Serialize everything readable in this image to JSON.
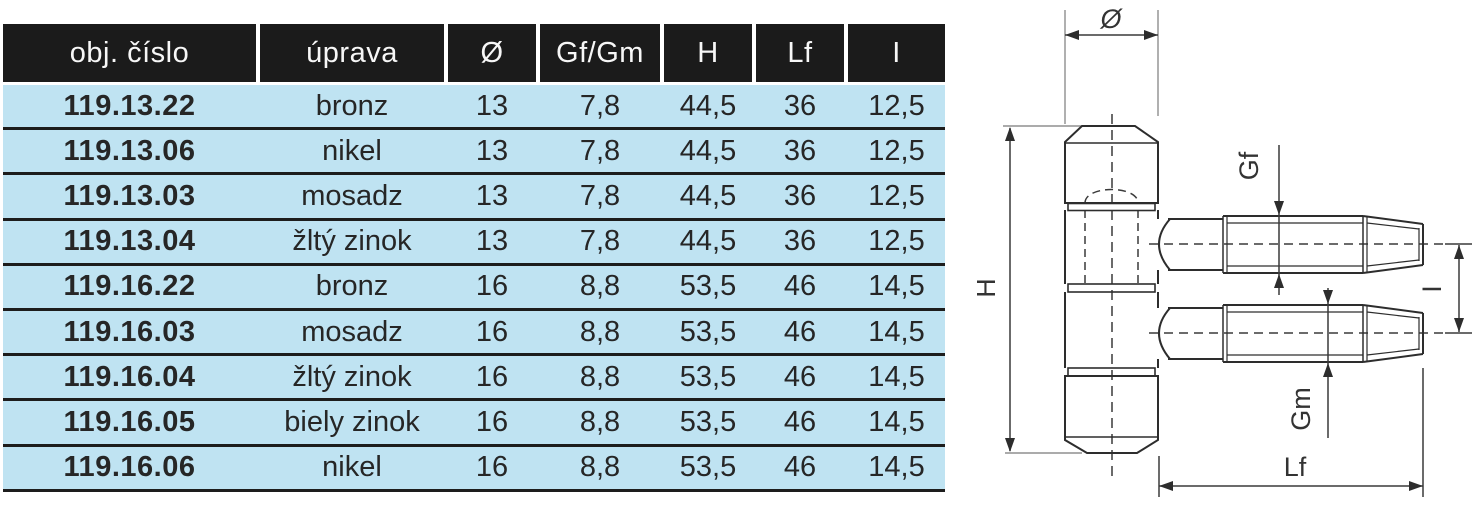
{
  "table": {
    "columns": [
      "obj. číslo",
      "úprava",
      "Ø",
      "Gf/Gm",
      "H",
      "Lf",
      "I"
    ],
    "column_keys": [
      "obj-cislo",
      "uprava",
      "priemer",
      "gf-gm",
      "h",
      "lf",
      "i"
    ],
    "rows": [
      [
        "119.13.22",
        "bronz",
        "13",
        "7,8",
        "44,5",
        "36",
        "12,5"
      ],
      [
        "119.13.06",
        "nikel",
        "13",
        "7,8",
        "44,5",
        "36",
        "12,5"
      ],
      [
        "119.13.03",
        "mosadz",
        "13",
        "7,8",
        "44,5",
        "36",
        "12,5"
      ],
      [
        "119.13.04",
        "žltý zinok",
        "13",
        "7,8",
        "44,5",
        "36",
        "12,5"
      ],
      [
        "119.16.22",
        "bronz",
        "16",
        "8,8",
        "53,5",
        "46",
        "14,5"
      ],
      [
        "119.16.03",
        "mosadz",
        "16",
        "8,8",
        "53,5",
        "46",
        "14,5"
      ],
      [
        "119.16.04",
        "žltý zinok",
        "16",
        "8,8",
        "53,5",
        "46",
        "14,5"
      ],
      [
        "119.16.05",
        "biely zinok",
        "16",
        "8,8",
        "53,5",
        "46",
        "14,5"
      ],
      [
        "119.16.06",
        "nikel",
        "16",
        "8,8",
        "53,5",
        "46",
        "14,5"
      ]
    ]
  },
  "diagram": {
    "labels": {
      "diameter": "Ø",
      "gf": "Gf",
      "gm": "Gm",
      "h": "H",
      "i": "I",
      "lf": "Lf"
    }
  },
  "colors": {
    "header_bg": "#1b1b1b",
    "header_text": "#f7f7f7",
    "row_bg": "#bfe3f2",
    "separator": "#1d1d1d",
    "row_text": "#262626",
    "drawing_line": "#2d2d2d"
  }
}
